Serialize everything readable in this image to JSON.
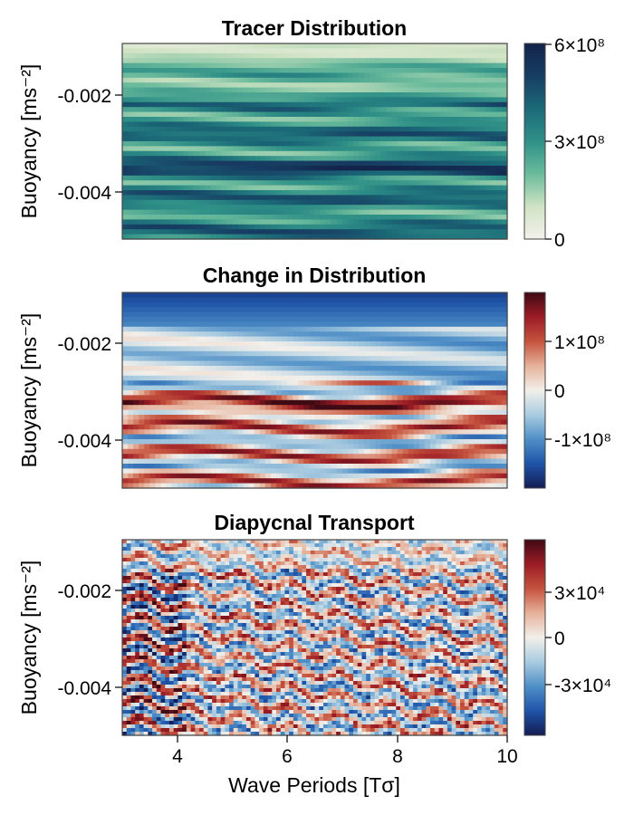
{
  "chart_data": [
    {
      "type": "heatmap",
      "title": "Tracer Distribution",
      "xlabel": "",
      "ylabel": "Buoyancy [ms⁻²]",
      "xlim": [
        3,
        10
      ],
      "ylim": [
        -0.005,
        -0.001
      ],
      "yticks": [
        -0.002,
        -0.004
      ],
      "ytick_labels": [
        "-0.002",
        "-0.004"
      ],
      "colorbar": {
        "range": [
          0,
          600000000
        ],
        "ticks": [
          0,
          300000000,
          600000000
        ],
        "tick_labels": [
          "0",
          "3×10⁸",
          "6×10⁸"
        ],
        "colors": [
          "#f4f1ec",
          "#cfe3c3",
          "#6bbb9c",
          "#2f9087",
          "#1b6a78",
          "#173e63",
          "#13234a"
        ]
      },
      "pattern": "horizontal bands of high concentration; pale near top, strongest band near -0.0036"
    },
    {
      "type": "heatmap",
      "title": "Change in Distribution",
      "xlabel": "",
      "ylabel": "Buoyancy [ms⁻²]",
      "xlim": [
        3,
        10
      ],
      "ylim": [
        -0.005,
        -0.001
      ],
      "yticks": [
        -0.002,
        -0.004
      ],
      "ytick_labels": [
        "-0.002",
        "-0.004"
      ],
      "colorbar": {
        "range": [
          -200000000,
          200000000
        ],
        "ticks": [
          100000000,
          0,
          -100000000
        ],
        "tick_labels": [
          "1×10⁸",
          "0",
          "-1×10⁸"
        ],
        "colors": [
          "#141c52",
          "#1f54a8",
          "#4f8fc7",
          "#a9cbe0",
          "#f2efea",
          "#e6b19a",
          "#c5533e",
          "#9b1c25",
          "#3f0a14"
        ]
      },
      "pattern": "strong negative (blue) near top; positive (red) bands near -0.0033 to -0.0038 and lower wavy bands"
    },
    {
      "type": "heatmap",
      "title": "Diapycnal Transport",
      "xlabel": "Wave Periods [Tσ]",
      "ylabel": "Buoyancy [ms⁻²]",
      "xlim": [
        3,
        10
      ],
      "ylim": [
        -0.005,
        -0.001
      ],
      "xticks": [
        4,
        6,
        8,
        10
      ],
      "xtick_labels": [
        "4",
        "6",
        "8",
        "10"
      ],
      "yticks": [
        -0.002,
        -0.004
      ],
      "ytick_labels": [
        "-0.002",
        "-0.004"
      ],
      "colorbar": {
        "range": [
          -40000,
          40000
        ],
        "ticks": [
          30000,
          0,
          -30000
        ],
        "tick_labels": [
          "3×10⁴",
          "0",
          "-3×10⁴"
        ],
        "colors": [
          "#141c52",
          "#1f54a8",
          "#4f8fc7",
          "#a9cbe0",
          "#f2efea",
          "#e6b19a",
          "#c5533e",
          "#9b1c25",
          "#3f0a14"
        ]
      },
      "pattern": "noisy alternating red/blue streaks, strongest at early periods (3–4.2), diagonal streaks later"
    }
  ]
}
